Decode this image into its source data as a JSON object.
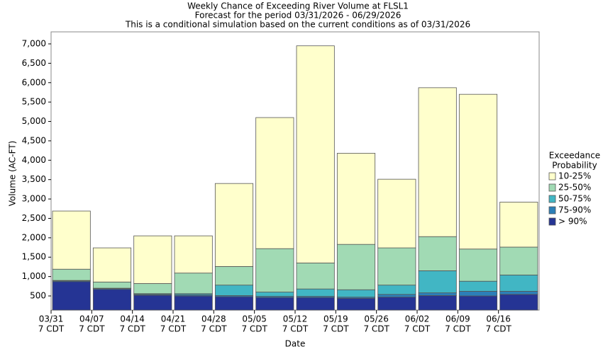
{
  "chart_data": {
    "type": "stacked-bar",
    "title": "Weekly Chance of Exceeding River Volume at FLSL1",
    "subtitle": "Forecast for the period 03/31/2026 - 06/29/2026",
    "note": "This is a conditional simulation based on the current conditions as of 03/31/2026",
    "y_label": "Volume (AC-FT)",
    "x_label": "Date",
    "categories": [
      "03/31",
      "04/07",
      "04/14",
      "04/21",
      "04/28",
      "05/05",
      "05/12",
      "05/19",
      "05/26",
      "06/02",
      "06/09",
      "06/16"
    ],
    "category_sublabel": "7 CDT",
    "legend_title": [
      "Exceedance",
      "Probability"
    ],
    "series": [
      {
        "name": "10-25%",
        "color": "#ffffcc",
        "values": [
          1500,
          880,
          1230,
          960,
          2140,
          3380,
          5600,
          2350,
          1770,
          3840,
          3990,
          1160
        ]
      },
      {
        "name": "25-50%",
        "color": "#a1dab4",
        "values": [
          290,
          160,
          260,
          530,
          480,
          1120,
          670,
          1170,
          960,
          880,
          830,
          720
        ]
      },
      {
        "name": "50-75%",
        "color": "#41b6c4",
        "values": [
          10,
          10,
          20,
          30,
          270,
          110,
          190,
          190,
          240,
          570,
          260,
          420
        ]
      },
      {
        "name": "75-90%",
        "color": "#2c7fb8",
        "values": [
          20,
          20,
          20,
          30,
          30,
          30,
          30,
          30,
          70,
          70,
          120,
          80
        ]
      },
      {
        "name": "> 90%",
        "color": "#253494",
        "values": [
          870,
          670,
          520,
          500,
          480,
          460,
          460,
          440,
          470,
          510,
          500,
          540
        ]
      }
    ],
    "ylim": [
      135,
      7310
    ],
    "yticks": [
      500,
      {
        "value": 1000,
        "label": "1,000"
      },
      {
        "value": 1500,
        "label": "1,500"
      },
      {
        "value": 2000,
        "label": "2,000"
      },
      {
        "value": 2500,
        "label": "2,500"
      },
      {
        "value": 3000,
        "label": "3,000"
      },
      {
        "value": 3500,
        "label": "3,500"
      },
      {
        "value": 4000,
        "label": "4,000"
      },
      {
        "value": 4500,
        "label": "4,500"
      },
      {
        "value": 5000,
        "label": "5,000"
      },
      {
        "value": 5500,
        "label": "5,500"
      },
      {
        "value": 6000,
        "label": "6,000"
      },
      {
        "value": 6500,
        "label": "6,500"
      },
      {
        "value": 7000,
        "label": "7,000"
      }
    ]
  }
}
